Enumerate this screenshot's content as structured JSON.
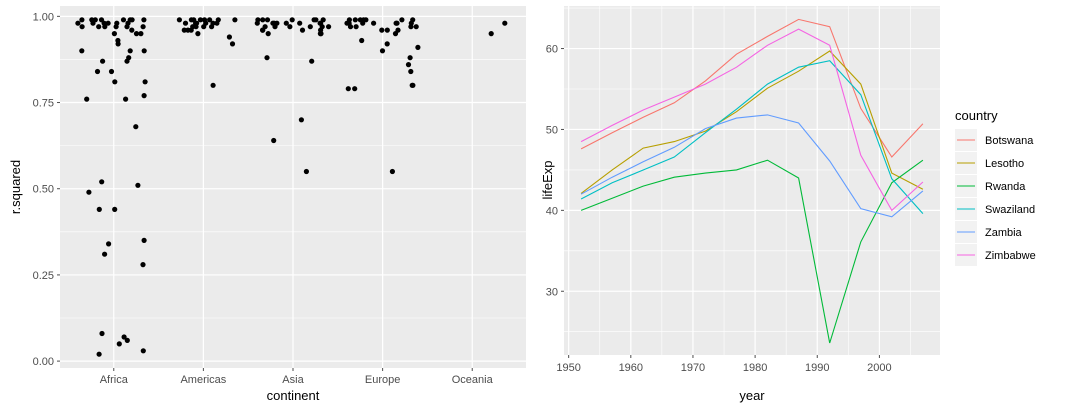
{
  "colors": {
    "panel": "#ebebeb",
    "grid_major": "#ffffff",
    "tick": "#4d4d4d",
    "points": "#000000"
  },
  "chart_data": [
    {
      "type": "scatter",
      "xlabel": "continent",
      "ylabel": "r.squared",
      "categories": [
        "Africa",
        "Americas",
        "Asia",
        "Europe",
        "Oceania"
      ],
      "ylim": [
        -0.02,
        1.03
      ],
      "yticks": [
        0.0,
        0.25,
        0.5,
        0.75,
        1.0
      ],
      "yticklabels": [
        "0.00",
        "0.25",
        "0.50",
        "0.75",
        "1.00"
      ],
      "grid": true,
      "series": [
        {
          "category": "Africa",
          "values": [
            0.98,
            0.99,
            0.97,
            0.98,
            0.99,
            0.97,
            0.99,
            0.96,
            0.99,
            0.98,
            0.97,
            0.99,
            0.95,
            0.99,
            0.97,
            0.88,
            0.98,
            0.9,
            0.87,
            0.84,
            0.77,
            0.68,
            0.76,
            0.44,
            0.35,
            0.06,
            0.07,
            0.05,
            0.03,
            0.28,
            0.31,
            0.08,
            0.51,
            0.52,
            0.49,
            0.44,
            0.34,
            0.02,
            0.81,
            0.93,
            0.9,
            0.95,
            0.97,
            0.84,
            0.92,
            0.95,
            0.98,
            0.99,
            0.97,
            0.99,
            0.98,
            0.87,
            0.76,
            0.9,
            0.81
          ]
        },
        {
          "category": "Americas",
          "values": [
            0.99,
            0.98,
            0.96,
            0.99,
            0.95,
            0.99,
            0.98,
            0.97,
            0.96,
            0.92,
            0.99,
            0.94,
            0.8,
            0.98,
            0.99,
            0.97,
            0.98,
            0.99,
            0.97,
            0.99,
            0.98,
            0.99,
            0.97,
            0.96,
            0.98
          ]
        },
        {
          "category": "Asia",
          "values": [
            0.99,
            0.98,
            0.97,
            0.99,
            0.96,
            0.98,
            0.95,
            0.99,
            0.97,
            0.98,
            0.96,
            0.99,
            0.97,
            0.98,
            0.88,
            0.99,
            0.98,
            0.95,
            0.96,
            0.97,
            0.87,
            0.98,
            0.99,
            0.97,
            0.96,
            0.98,
            0.7,
            0.64,
            0.97,
            0.99,
            0.55,
            0.98,
            0.95
          ]
        },
        {
          "category": "Europe",
          "values": [
            0.99,
            0.98,
            0.97,
            0.99,
            0.96,
            0.98,
            0.8,
            0.55,
            0.8,
            0.79,
            0.98,
            0.99,
            0.97,
            0.96,
            0.95,
            0.99,
            0.98,
            0.93,
            0.92,
            0.97,
            0.99,
            0.98,
            0.96,
            0.9,
            0.98,
            0.79,
            0.99,
            0.97,
            0.98,
            0.84,
            0.99,
            0.88,
            0.86,
            0.91
          ]
        },
        {
          "category": "Oceania",
          "values": [
            0.98,
            0.95
          ]
        }
      ]
    },
    {
      "type": "line",
      "xlabel": "year",
      "ylabel": "lifeExp",
      "xlim": [
        1949.25,
        2009.75
      ],
      "ylim": [
        22.12,
        65.26
      ],
      "xticks": [
        1950,
        1960,
        1970,
        1980,
        1990,
        2000
      ],
      "yticks": [
        30,
        40,
        50,
        60
      ],
      "grid": true,
      "legend": {
        "title": "country",
        "placement": "right"
      },
      "x": [
        1952,
        1957,
        1962,
        1967,
        1972,
        1977,
        1982,
        1987,
        1992,
        1997,
        2002,
        2007
      ],
      "series": [
        {
          "name": "Botswana",
          "color": "#F8766D",
          "values": [
            47.6,
            49.6,
            51.5,
            53.3,
            56.0,
            59.3,
            61.5,
            63.6,
            62.7,
            52.6,
            46.6,
            50.7
          ]
        },
        {
          "name": "Lesotho",
          "color": "#B79F00",
          "values": [
            42.1,
            45.0,
            47.7,
            48.5,
            49.8,
            52.2,
            55.1,
            57.2,
            59.7,
            55.6,
            44.6,
            42.6
          ]
        },
        {
          "name": "Rwanda",
          "color": "#00BA38",
          "values": [
            40.0,
            41.5,
            43.0,
            44.1,
            44.6,
            45.0,
            46.2,
            44.0,
            23.6,
            36.1,
            43.4,
            46.2
          ]
        },
        {
          "name": "Swaziland",
          "color": "#00BFC4",
          "values": [
            41.4,
            43.4,
            44.99,
            46.6,
            49.6,
            52.5,
            55.6,
            57.7,
            58.5,
            54.3,
            43.9,
            39.6
          ]
        },
        {
          "name": "Zambia",
          "color": "#619CFF",
          "values": [
            42.0,
            44.1,
            46.0,
            47.8,
            50.1,
            51.4,
            51.8,
            50.8,
            46.1,
            40.2,
            39.2,
            42.4
          ]
        },
        {
          "name": "Zimbabwe",
          "color": "#F564E3",
          "values": [
            48.5,
            50.5,
            52.4,
            54.0,
            55.6,
            57.7,
            60.4,
            62.4,
            60.4,
            46.8,
            40.0,
            43.5
          ]
        }
      ]
    }
  ]
}
